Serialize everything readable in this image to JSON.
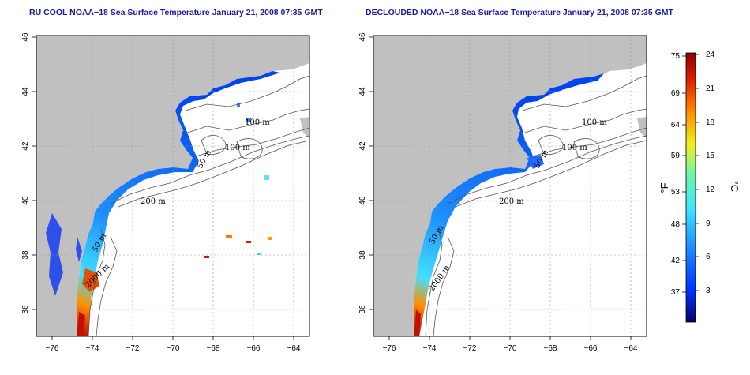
{
  "panels": [
    {
      "title": "RU COOL NOAA−18 Sea Surface Temperature January 21, 2008 07:35 GMT",
      "contour_labels": [
        "100 m",
        "100 m",
        "50 m",
        "200 m",
        "50 m",
        "2000 m"
      ]
    },
    {
      "title": "DECLOUDED NOAA−18 Sea Surface Temperature January 21, 2008 07:35 GMT",
      "contour_labels": [
        "100 m",
        "100 m",
        "50 m",
        "200 m",
        "50 m",
        "2000 m"
      ]
    }
  ],
  "axes": {
    "lon_ticks": [
      "−76",
      "−74",
      "−72",
      "−70",
      "−68",
      "−66",
      "−64"
    ],
    "lat_ticks": [
      "36",
      "38",
      "40",
      "42",
      "44",
      "46"
    ]
  },
  "colorbar": {
    "label_f": "°F",
    "label_c": "°C",
    "f_ticks": [
      "75",
      "69",
      "64",
      "59",
      "53",
      "48",
      "42",
      "37"
    ],
    "c_ticks": [
      "24",
      "21",
      "18",
      "15",
      "12",
      "9",
      "6",
      "3"
    ],
    "c_range": [
      0,
      24
    ],
    "colors": [
      "#0b006b",
      "#0033ff",
      "#1f8fff",
      "#3fe3ff",
      "#6ff5a8",
      "#f0f020",
      "#ff8c00",
      "#e02000",
      "#8b0000"
    ]
  },
  "colors": {
    "land": "#c0c0c0",
    "sea": "#ffffff",
    "contour": "#555555",
    "title": "#1a1aa6"
  }
}
